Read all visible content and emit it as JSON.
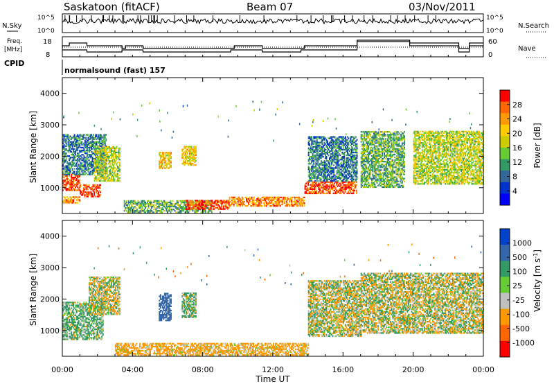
{
  "header": {
    "station": "Saskatoon (fitACF)",
    "beam": "Beam 07",
    "date": "03/Nov/2011"
  },
  "top_panels": {
    "nsky_label": "N.Sky",
    "nsky_ticks": [
      "10^5",
      "10^0"
    ],
    "nsearch_label": "N.Search",
    "freq_label": [
      "Freq.",
      "[MHz]"
    ],
    "freq_ticks": [
      "18",
      "8"
    ],
    "nave_label": "Nave",
    "nave_ticks": [
      "60",
      "0"
    ],
    "cpid_label": "CPID",
    "cpid_text": "normalsound (fast) 157"
  },
  "colorbar_power": {
    "label": "Power [dB]",
    "ticks": [
      "28",
      "24",
      "20",
      "16",
      "12",
      "8",
      "4"
    ],
    "colors": [
      "#ff0000",
      "#ff6600",
      "#ff9900",
      "#ffcc00",
      "#cccc00",
      "#66cc33",
      "#339966",
      "#336699",
      "#0033cc",
      "#0000ff"
    ]
  },
  "colorbar_velocity": {
    "label": "Velocity [m s",
    "label_sup": "-1",
    "label_close": "]",
    "ticks": [
      "1000",
      "500",
      "100",
      "25",
      "-25",
      "-100",
      "-500",
      "-1000"
    ],
    "colors": [
      "#0044cc",
      "#3366aa",
      "#339966",
      "#66cc33",
      "#c0c0c0",
      "#ff9900",
      "#ff6600",
      "#ff0000"
    ]
  },
  "axes": {
    "ylabel": "Slant Range [km]",
    "xlabel": "Time UT",
    "yticks": [
      "4000",
      "3000",
      "2000",
      "1000"
    ],
    "xticks": [
      "00:00",
      "04:00",
      "08:00",
      "12:00",
      "16:00",
      "20:00",
      "00:00"
    ]
  },
  "chart_data": [
    {
      "type": "heatmap",
      "title": "Power",
      "xlabel": "Time UT",
      "ylabel": "Slant Range [km]",
      "xlim": [
        0,
        24
      ],
      "ylim": [
        180,
        4500
      ],
      "colorbar": {
        "label": "Power [dB]",
        "range": [
          0,
          30
        ]
      },
      "regions": [
        {
          "t": [
            0.0,
            1.0
          ],
          "r": [
            900,
            1400
          ],
          "value": 28
        },
        {
          "t": [
            1.0,
            2.2
          ],
          "r": [
            700,
            1100
          ],
          "value": 28
        },
        {
          "t": [
            0.0,
            1.0
          ],
          "r": [
            500,
            700
          ],
          "value": 24
        },
        {
          "t": [
            0.0,
            2.5
          ],
          "r": [
            1400,
            2700
          ],
          "value": 8
        },
        {
          "t": [
            1.8,
            3.3
          ],
          "r": [
            1200,
            2300
          ],
          "value": 16
        },
        {
          "t": [
            5.5,
            6.2
          ],
          "r": [
            1600,
            2100
          ],
          "value": 20
        },
        {
          "t": [
            6.8,
            7.6
          ],
          "r": [
            1700,
            2300
          ],
          "value": 20
        },
        {
          "t": [
            3.5,
            8.5
          ],
          "r": [
            200,
            600
          ],
          "value": 12
        },
        {
          "t": [
            7.0,
            9.5
          ],
          "r": [
            300,
            600
          ],
          "value": 28
        },
        {
          "t": [
            9.5,
            13.8
          ],
          "r": [
            400,
            700
          ],
          "value": 24
        },
        {
          "t": [
            13.8,
            16.8
          ],
          "r": [
            800,
            1200
          ],
          "value": 28
        },
        {
          "t": [
            14.0,
            16.8
          ],
          "r": [
            1200,
            2600
          ],
          "value": 8
        },
        {
          "t": [
            17.0,
            19.5
          ],
          "r": [
            1000,
            2800
          ],
          "value": 12
        },
        {
          "t": [
            20.0,
            24.0
          ],
          "r": [
            1100,
            2800
          ],
          "value": 16
        }
      ]
    },
    {
      "type": "heatmap",
      "title": "Velocity",
      "xlabel": "Time UT",
      "ylabel": "Slant Range [km]",
      "xlim": [
        0,
        24
      ],
      "ylim": [
        180,
        4500
      ],
      "colorbar": {
        "label": "Velocity [m s-1]",
        "range": [
          -1000,
          1000
        ]
      },
      "regions": [
        {
          "t": [
            0.0,
            2.3
          ],
          "r": [
            700,
            1900
          ],
          "value": 100
        },
        {
          "t": [
            1.5,
            3.3
          ],
          "r": [
            1500,
            2700
          ],
          "value": 0
        },
        {
          "t": [
            5.5,
            6.2
          ],
          "r": [
            1300,
            2200
          ],
          "value": 500
        },
        {
          "t": [
            6.8,
            7.6
          ],
          "r": [
            1400,
            2200
          ],
          "value": 100
        },
        {
          "t": [
            3.0,
            14.0
          ],
          "r": [
            200,
            600
          ],
          "value": -100
        },
        {
          "t": [
            14.0,
            17.0
          ],
          "r": [
            800,
            2600
          ],
          "value": 0
        },
        {
          "t": [
            17.0,
            24.0
          ],
          "r": [
            900,
            2800
          ],
          "value": 0
        }
      ]
    }
  ]
}
